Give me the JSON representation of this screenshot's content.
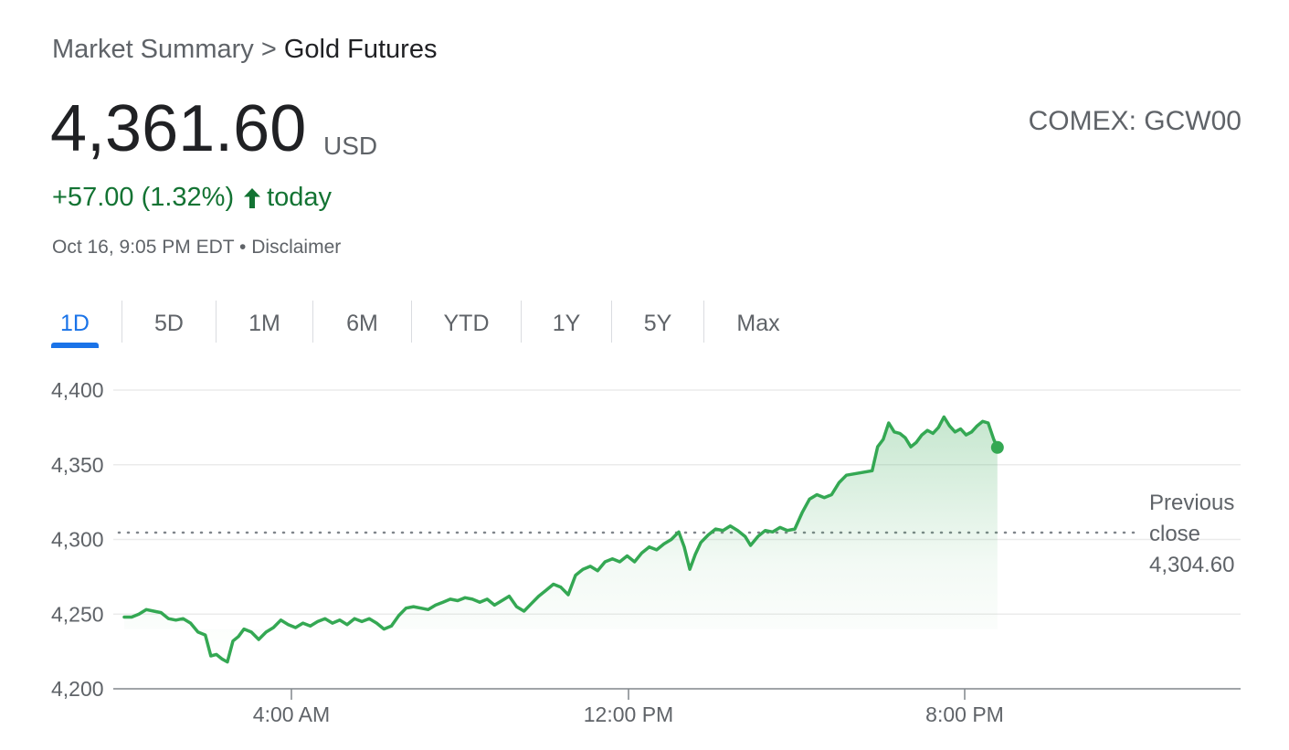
{
  "breadcrumb": {
    "parent": "Market Summary",
    "separator": ">",
    "current": "Gold Futures"
  },
  "quote": {
    "price": "4,361.60",
    "currency": "USD",
    "ticker": "COMEX: GCW00",
    "change": "+57.00 (1.32%)",
    "change_period": "today",
    "timestamp": "Oct 16, 9:05 PM EDT",
    "dot": "•",
    "disclaimer": "Disclaimer"
  },
  "tabs": [
    {
      "label": "1D",
      "active": true
    },
    {
      "label": "5D",
      "active": false
    },
    {
      "label": "1M",
      "active": false
    },
    {
      "label": "6M",
      "active": false
    },
    {
      "label": "YTD",
      "active": false
    },
    {
      "label": "1Y",
      "active": false
    },
    {
      "label": "5Y",
      "active": false
    },
    {
      "label": "Max",
      "active": false
    }
  ],
  "previous_close": {
    "line1": "Previous",
    "line2": "close",
    "value": "4,304.60"
  },
  "colors": {
    "up": "#137333",
    "line": "#34a853",
    "tab_active": "#1a73e8"
  },
  "chart_data": {
    "type": "line",
    "title": "",
    "xlabel": "",
    "ylabel": "",
    "ylim": [
      4200,
      4400
    ],
    "xlim_hours": [
      22.9,
      32.9
    ],
    "yticks": [
      {
        "value": 4400,
        "label": "4,400"
      },
      {
        "value": 4350,
        "label": "4,350"
      },
      {
        "value": 4300,
        "label": "4,300"
      },
      {
        "value": 4250,
        "label": "4,250"
      },
      {
        "value": 4200,
        "label": "4,200"
      }
    ],
    "xticks": [
      {
        "hour": 28,
        "label": "4:00 AM"
      },
      {
        "hour": 36,
        "label": "12:00 PM"
      },
      {
        "hour": 44,
        "label": "8:00 PM"
      }
    ],
    "previous_close": 4304.6,
    "series": [
      {
        "name": "",
        "points": [
          [
            23.1,
            4248
          ],
          [
            23.3,
            4248
          ],
          [
            23.5,
            4250
          ],
          [
            23.7,
            4253
          ],
          [
            23.9,
            4252
          ],
          [
            24.1,
            4251
          ],
          [
            24.3,
            4247
          ],
          [
            24.5,
            4246
          ],
          [
            24.7,
            4247
          ],
          [
            24.9,
            4244
          ],
          [
            25.1,
            4238
          ],
          [
            25.3,
            4236
          ],
          [
            25.45,
            4222
          ],
          [
            25.6,
            4223
          ],
          [
            25.75,
            4220
          ],
          [
            25.9,
            4218
          ],
          [
            26.05,
            4232
          ],
          [
            26.2,
            4235
          ],
          [
            26.35,
            4240
          ],
          [
            26.55,
            4238
          ],
          [
            26.75,
            4233
          ],
          [
            26.95,
            4238
          ],
          [
            27.15,
            4241
          ],
          [
            27.35,
            4246
          ],
          [
            27.55,
            4243
          ],
          [
            27.75,
            4241
          ],
          [
            27.95,
            4244
          ],
          [
            28.15,
            4242
          ],
          [
            28.35,
            4245
          ],
          [
            28.55,
            4247
          ],
          [
            28.75,
            4244
          ],
          [
            28.95,
            4246
          ],
          [
            29.15,
            4243
          ],
          [
            29.35,
            4247
          ],
          [
            29.55,
            4245
          ],
          [
            29.75,
            4247
          ],
          [
            29.95,
            4244
          ],
          [
            30.15,
            4240
          ],
          [
            30.35,
            4242
          ],
          [
            30.55,
            4249
          ],
          [
            30.75,
            4254
          ],
          [
            30.95,
            4255
          ],
          [
            31.15,
            4254
          ],
          [
            31.35,
            4253
          ],
          [
            31.55,
            4256
          ],
          [
            31.75,
            4258
          ],
          [
            31.95,
            4260
          ],
          [
            32.15,
            4259
          ],
          [
            32.35,
            4261
          ],
          [
            32.55,
            4260
          ],
          [
            32.75,
            4258
          ],
          [
            32.95,
            4260
          ],
          [
            33.15,
            4256
          ],
          [
            33.35,
            4259
          ],
          [
            33.55,
            4262
          ],
          [
            33.75,
            4255
          ],
          [
            33.95,
            4252
          ],
          [
            34.15,
            4257
          ],
          [
            34.35,
            4262
          ],
          [
            34.55,
            4266
          ],
          [
            34.75,
            4270
          ],
          [
            34.95,
            4268
          ],
          [
            35.15,
            4263
          ],
          [
            35.35,
            4276
          ],
          [
            35.55,
            4280
          ],
          [
            35.75,
            4282
          ],
          [
            35.95,
            4279
          ],
          [
            36.15,
            4285
          ],
          [
            36.35,
            4287
          ],
          [
            36.55,
            4285
          ],
          [
            36.75,
            4289
          ],
          [
            36.95,
            4285
          ],
          [
            37.15,
            4291
          ],
          [
            37.35,
            4295
          ],
          [
            37.55,
            4293
          ],
          [
            37.75,
            4297
          ],
          [
            37.95,
            4300
          ],
          [
            38.15,
            4305
          ],
          [
            38.3,
            4295
          ],
          [
            38.45,
            4280
          ],
          [
            38.6,
            4290
          ],
          [
            38.75,
            4298
          ],
          [
            38.95,
            4303
          ],
          [
            39.15,
            4307
          ],
          [
            39.35,
            4306
          ],
          [
            39.55,
            4309
          ],
          [
            39.75,
            4306
          ],
          [
            39.95,
            4302
          ],
          [
            40.1,
            4296
          ],
          [
            40.3,
            4302
          ],
          [
            40.5,
            4306
          ],
          [
            40.7,
            4305
          ],
          [
            40.9,
            4308
          ],
          [
            41.1,
            4306
          ],
          [
            41.3,
            4307
          ],
          [
            41.5,
            4318
          ],
          [
            41.7,
            4327
          ],
          [
            41.9,
            4330
          ],
          [
            42.1,
            4328
          ],
          [
            42.3,
            4330
          ],
          [
            42.5,
            4338
          ],
          [
            42.7,
            4343
          ],
          [
            43.4,
            4346
          ],
          [
            43.55,
            4362
          ],
          [
            43.7,
            4367
          ],
          [
            43.85,
            4378
          ],
          [
            44.0,
            4372
          ],
          [
            44.15,
            4371
          ],
          [
            44.3,
            4368
          ],
          [
            44.45,
            4362
          ],
          [
            44.6,
            4365
          ],
          [
            44.75,
            4370
          ],
          [
            44.9,
            4373
          ],
          [
            45.05,
            4371
          ],
          [
            45.2,
            4375
          ],
          [
            45.35,
            4382
          ],
          [
            45.5,
            4376
          ],
          [
            45.65,
            4372
          ],
          [
            45.8,
            4374
          ],
          [
            45.95,
            4370
          ],
          [
            46.1,
            4372
          ],
          [
            46.25,
            4376
          ],
          [
            46.4,
            4379
          ],
          [
            46.55,
            4378
          ],
          [
            46.7,
            4367
          ],
          [
            46.8,
            4361.6
          ]
        ]
      }
    ]
  }
}
